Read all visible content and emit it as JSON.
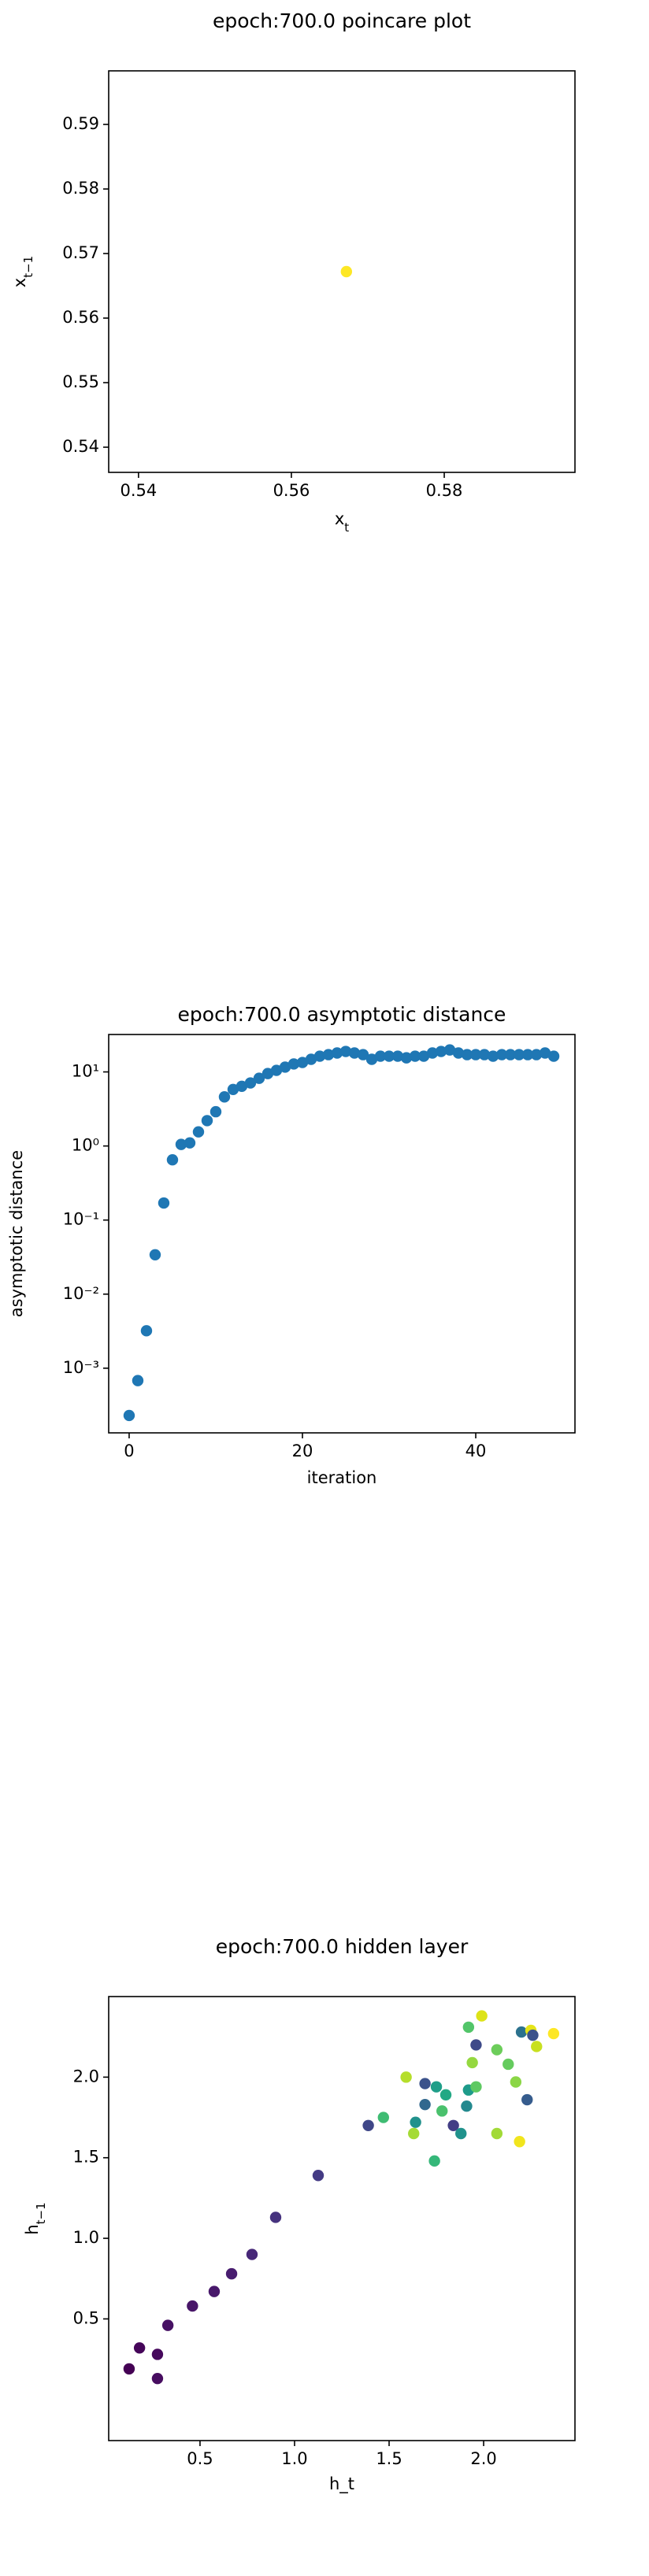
{
  "chart_data": [
    {
      "type": "scatter",
      "title": "epoch:700.0 poincare plot",
      "xlabel": {
        "text": "x",
        "subscript": "t"
      },
      "ylabel": {
        "text": "x",
        "subscript": "t−1"
      },
      "xlim": [
        0.5361,
        0.5971
      ],
      "ylim": [
        0.5361,
        0.5983
      ],
      "xticks": [
        0.54,
        0.56,
        0.58
      ],
      "yticks": [
        0.54,
        0.55,
        0.56,
        0.57,
        0.58,
        0.59
      ],
      "series": [
        {
          "x": [
            0.5672
          ],
          "y": [
            0.5672
          ],
          "colors": [
            "#fde725"
          ]
        }
      ]
    },
    {
      "type": "scatter",
      "title": "epoch:700.0 asymptotic distance",
      "xlabel": "iteration",
      "ylabel": "asymptotic distance",
      "yscale": "log",
      "xlim": [
        -2.36,
        51.45
      ],
      "ylim": [
        0.000134,
        32
      ],
      "xticks": [
        0,
        20,
        40
      ],
      "yticks": [
        {
          "value": 0.001,
          "label": "10⁻³"
        },
        {
          "value": 0.01,
          "label": "10⁻²"
        },
        {
          "value": 0.1,
          "label": "10⁻¹"
        },
        {
          "value": 1,
          "label": "10⁰"
        },
        {
          "value": 10,
          "label": "10¹"
        }
      ],
      "series": [
        {
          "color": "#1f77b4",
          "x": [
            0,
            1,
            2,
            3,
            4,
            5,
            6,
            7,
            8,
            9,
            10,
            11,
            12,
            13,
            14,
            15,
            16,
            17,
            18,
            19,
            20,
            21,
            22,
            23,
            24,
            25,
            26,
            27,
            28,
            29,
            30,
            31,
            32,
            33,
            34,
            35,
            36,
            37,
            38,
            39,
            40,
            41,
            42,
            43,
            44,
            45,
            46,
            47,
            48,
            49
          ],
          "y": [
            0.00023,
            0.00068,
            0.0032,
            0.034,
            0.17,
            0.65,
            1.05,
            1.1,
            1.55,
            2.2,
            2.9,
            4.6,
            5.8,
            6.4,
            7.1,
            8.2,
            9.5,
            10.5,
            11.6,
            12.8,
            13.4,
            14.8,
            16.3,
            17.1,
            18.0,
            18.9,
            18.0,
            17.1,
            14.8,
            16.3,
            16.3,
            16.3,
            15.5,
            16.3,
            16.3,
            18.0,
            18.9,
            19.8,
            18.0,
            17.1,
            17.1,
            17.1,
            16.3,
            17.1,
            17.1,
            17.1,
            17.1,
            17.1,
            18.0,
            16.3
          ]
        }
      ]
    },
    {
      "type": "scatter",
      "title": "epoch:700.0 hidden layer",
      "xlabel": "h_t",
      "ylabel": {
        "text": "h",
        "subscript": "t−1"
      },
      "xlim": [
        0.017,
        2.483
      ],
      "ylim": [
        -0.255,
        2.5
      ],
      "xticks": [
        0.5,
        {
          "value": 1,
          "label": "1.0"
        },
        1.5,
        {
          "value": 2,
          "label": "2.0"
        }
      ],
      "yticks": [
        0.5,
        {
          "value": 1,
          "label": "1.0"
        },
        1.5,
        {
          "value": 2,
          "label": "2.0"
        }
      ],
      "series": [
        {
          "x": [
            0.125,
            0.18,
            0.275,
            0.275,
            0.33,
            0.46,
            0.575,
            0.667,
            0.775,
            0.9,
            1.125,
            1.39,
            1.47,
            1.59,
            1.63,
            1.64,
            1.69,
            1.69,
            1.74,
            1.75,
            1.78,
            1.8,
            1.84,
            1.88,
            1.91,
            1.92,
            1.96,
            1.94,
            1.92,
            1.96,
            1.99,
            2.07,
            2.07,
            2.13,
            2.17,
            2.19,
            2.2,
            2.23,
            2.25,
            2.26,
            2.28,
            2.37
          ],
          "y": [
            0.19,
            0.32,
            0.28,
            0.13,
            0.46,
            0.58,
            0.67,
            0.78,
            0.9,
            1.13,
            1.39,
            1.7,
            1.75,
            2.0,
            1.65,
            1.72,
            1.83,
            1.96,
            1.48,
            1.94,
            1.79,
            1.89,
            1.7,
            1.65,
            1.82,
            1.92,
            1.94,
            2.09,
            2.31,
            2.2,
            2.38,
            2.17,
            1.65,
            2.08,
            1.97,
            1.6,
            2.28,
            1.86,
            2.29,
            2.26,
            2.19,
            2.27
          ],
          "colors": [
            "#440154",
            "#450559",
            "#46085c",
            "#470d60",
            "#471164",
            "#481668",
            "#48196b",
            "#481d6f",
            "#472878",
            "#46327e",
            "#443b84",
            "#3f4788",
            "#3fbc73",
            "#b5de2b",
            "#a5db36",
            "#21918c",
            "#31688e",
            "#3b528b",
            "#35b779",
            "#1f9e89",
            "#4ac16d",
            "#22a884",
            "#433e85",
            "#20928c",
            "#23898e",
            "#1e9b8a",
            "#5ec962",
            "#95d840",
            "#52c569",
            "#3e4a89",
            "#dde318",
            "#6ccd5a",
            "#a2da37",
            "#65cb5e",
            "#8bd646",
            "#f1e51d",
            "#2c728e",
            "#365c8d",
            "#e5e419",
            "#3b528b",
            "#c8e020",
            "#fde725"
          ]
        }
      ]
    }
  ]
}
